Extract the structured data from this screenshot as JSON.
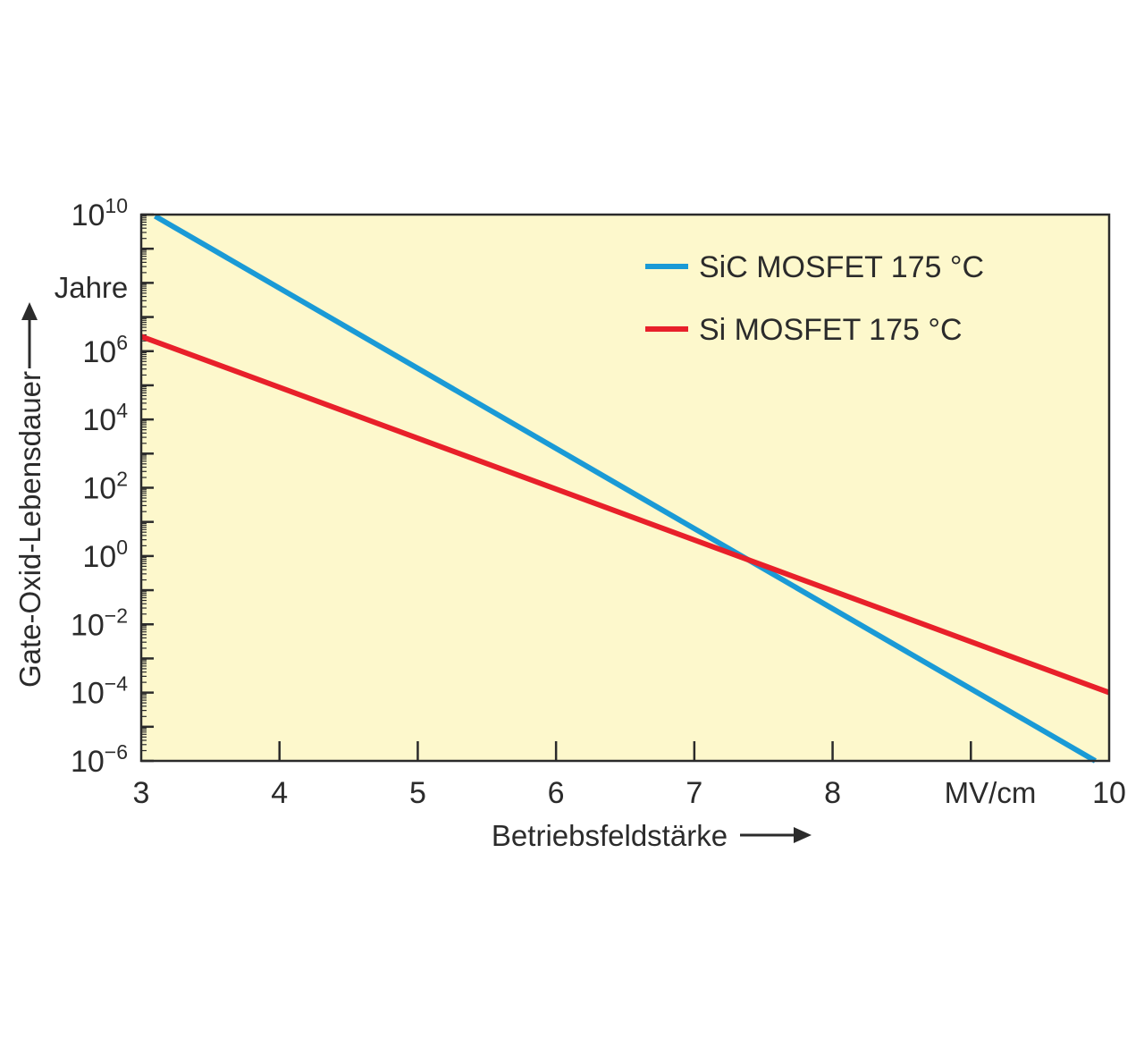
{
  "chart_data": {
    "type": "line",
    "xlabel": "Betriebsfeldstärke",
    "xunit": "MV/cm",
    "ylabel": "Gate-Oxid-Lebensdauer",
    "yunit": "Jahre",
    "xlim": [
      3,
      10
    ],
    "ylim": [
      1e-06,
      10000000000.0
    ],
    "yscale": "log",
    "x_ticks": [
      {
        "value": 3,
        "label": "3"
      },
      {
        "value": 4,
        "label": "4"
      },
      {
        "value": 5,
        "label": "5"
      },
      {
        "value": 6,
        "label": "6"
      },
      {
        "value": 7,
        "label": "7"
      },
      {
        "value": 8,
        "label": "8"
      },
      {
        "value": 10,
        "label": "10"
      }
    ],
    "y_ticks": [
      {
        "value": 10000000000.0,
        "base": "10",
        "exp": "10"
      },
      {
        "value": 1000000.0,
        "base": "10",
        "exp": "6"
      },
      {
        "value": 10000.0,
        "base": "10",
        "exp": "4"
      },
      {
        "value": 100.0,
        "base": "10",
        "exp": "2"
      },
      {
        "value": 1,
        "base": "10",
        "exp": "0"
      },
      {
        "value": 0.01,
        "base": "10",
        "exp": "−2"
      },
      {
        "value": 0.0001,
        "base": "10",
        "exp": "−4"
      },
      {
        "value": 1e-06,
        "base": "10",
        "exp": "−6"
      }
    ],
    "grid": false,
    "legend_position": "top-right",
    "plot_background": "#fdf8cc",
    "series": [
      {
        "name": "SiC MOSFET 175 °C",
        "color": "#1a9ad6",
        "x": [
          3.1,
          9.9
        ],
        "y": [
          9000000000.0,
          1e-06
        ]
      },
      {
        "name": "Si MOSFET 175 °C",
        "color": "#e8202a",
        "x": [
          3.0,
          10.0
        ],
        "y": [
          2700000.0,
          0.0001
        ]
      }
    ]
  }
}
